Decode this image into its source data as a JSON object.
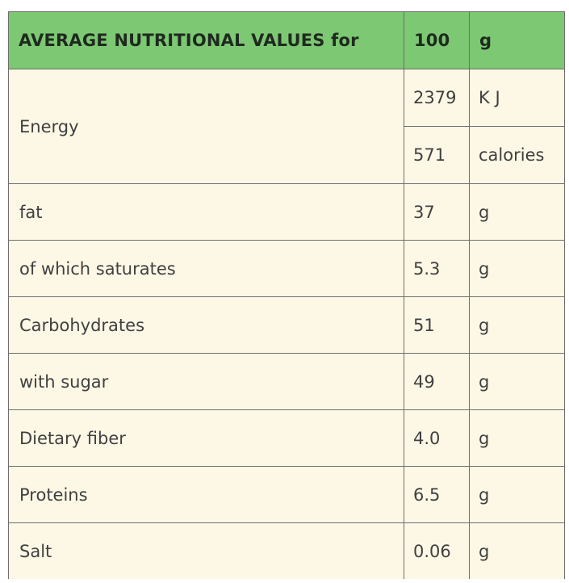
{
  "header": {
    "title": "AVERAGE NUTRITIONAL VALUES for",
    "amount": "100",
    "unit": "g"
  },
  "energy": {
    "label": "Energy",
    "kj_value": "2379",
    "kj_unit": "K J",
    "cal_value": "571",
    "cal_unit": "calories"
  },
  "rows": [
    {
      "label": "fat",
      "value": "37",
      "unit": "g"
    },
    {
      "label": "of which saturates",
      "value": "5.3",
      "unit": "g"
    },
    {
      "label": "Carbohydrates",
      "value": "51",
      "unit": "g"
    },
    {
      "label": "with sugar",
      "value": "49",
      "unit": "g"
    },
    {
      "label": "Dietary fiber",
      "value": "4.0",
      "unit": "g"
    },
    {
      "label": "Proteins",
      "value": "6.5",
      "unit": "g"
    },
    {
      "label": "Salt",
      "value": "0.06",
      "unit": "g"
    }
  ],
  "colors": {
    "header_bg": "#7dc873",
    "cell_bg": "#fdf8e6",
    "border": "#6e6e6e"
  }
}
